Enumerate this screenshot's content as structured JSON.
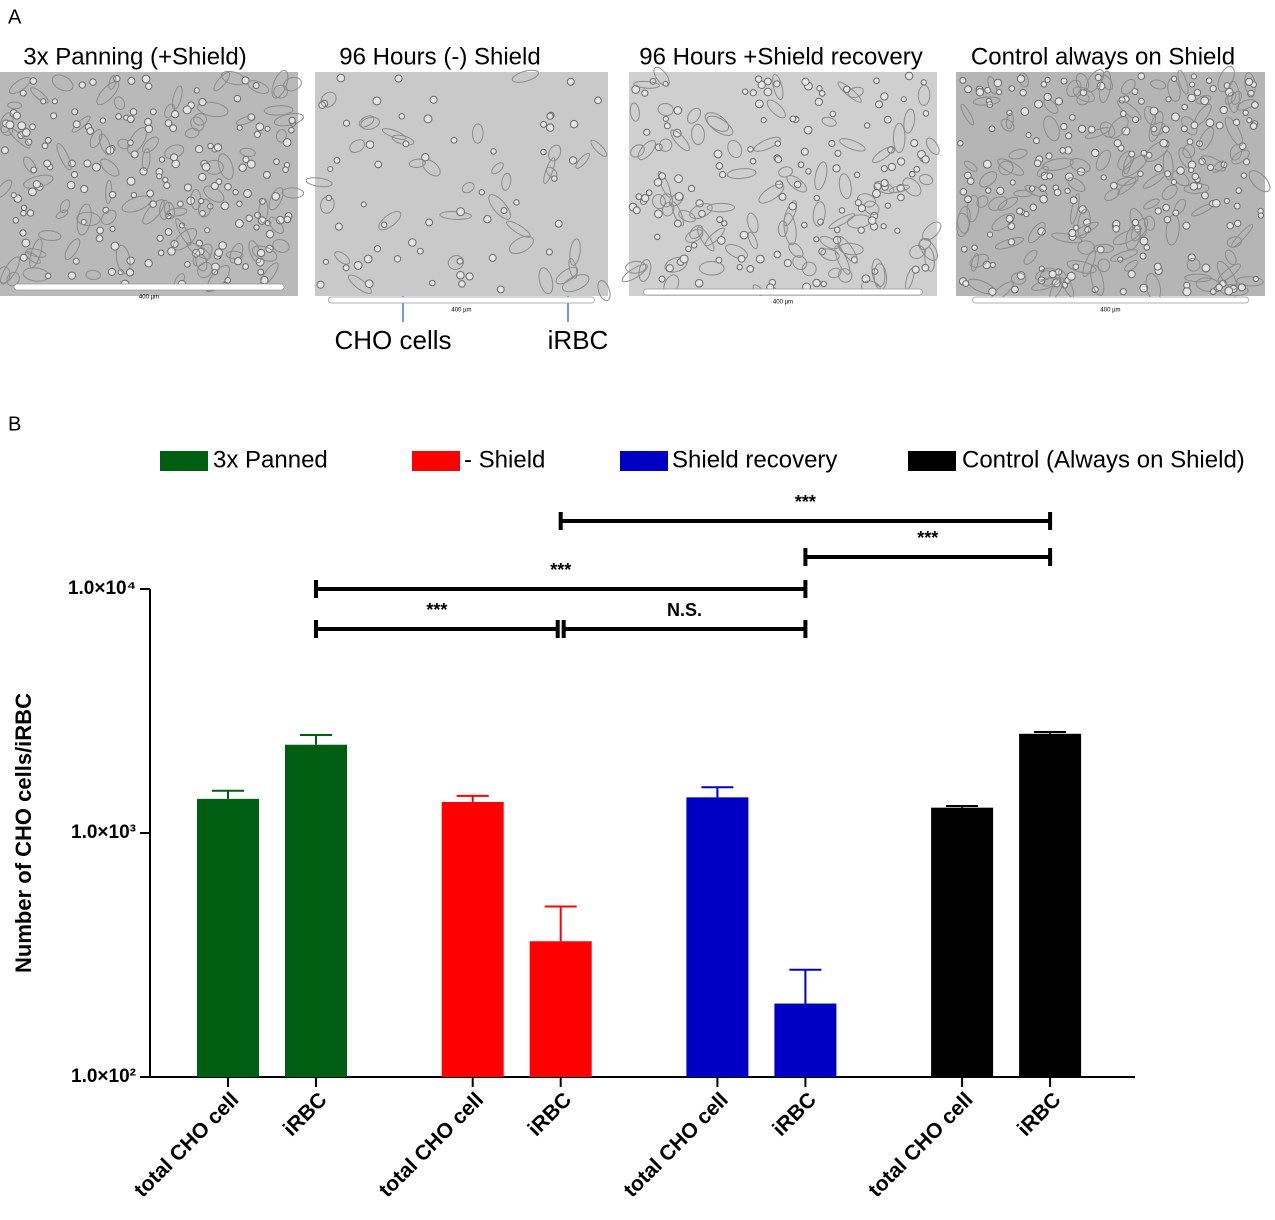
{
  "panel_a": {
    "label": "A",
    "images": [
      {
        "title": "3x Panning (+Shield)",
        "scale": "400 µm"
      },
      {
        "title": "96 Hours (-) Shield",
        "scale": "400 µm"
      },
      {
        "title": "96 Hours +Shield recovery",
        "scale": "400 µm"
      },
      {
        "title": "Control always on Shield",
        "scale": "400 µm"
      }
    ],
    "annotations": [
      "CHO cells",
      "iRBC"
    ]
  },
  "chart_data": {
    "type": "bar",
    "panel_label": "B",
    "ylabel": "Number of CHO cells/iRBC",
    "categories": [
      "total CHO cell",
      "iRBC",
      "total CHO cell",
      "iRBC",
      "total CHO cell",
      "iRBC",
      "total CHO cell",
      "iRBC"
    ],
    "series": [
      {
        "name": "3x Panned",
        "color": "#005e12",
        "values": [
          1380,
          2300,
          null,
          null,
          null,
          null,
          null,
          null
        ],
        "errors": [
          110,
          220,
          null,
          null,
          null,
          null,
          null,
          null
        ]
      },
      {
        "name": "- Shield",
        "color": "#ff0000",
        "values": [
          null,
          null,
          1340,
          360,
          null,
          null,
          null,
          null
        ],
        "errors": [
          null,
          null,
          80,
          140,
          null,
          null,
          null,
          null
        ]
      },
      {
        "name": "Shield recovery",
        "color": "#0000c4",
        "values": [
          null,
          null,
          null,
          null,
          1400,
          200,
          null,
          null
        ],
        "errors": [
          null,
          null,
          null,
          null,
          140,
          75,
          null,
          null
        ]
      },
      {
        "name": "Control (Always on  Shield)",
        "color": "#000000",
        "values": [
          null,
          null,
          null,
          null,
          null,
          null,
          1270,
          2550
        ],
        "errors": [
          null,
          null,
          null,
          null,
          null,
          null,
          20,
          45
        ]
      }
    ],
    "ylim": [
      100,
      10000
    ],
    "log_scale": true,
    "yticks": [
      {
        "value": 100,
        "label": "1.0×10²"
      },
      {
        "value": 1000,
        "label": "1.0×10³"
      },
      {
        "value": 10000,
        "label": "1.0×10⁴"
      }
    ],
    "legend_position": "top",
    "brackets": [
      {
        "label": "***",
        "from": 1,
        "to": 3
      },
      {
        "label": "N.S.",
        "from": 3,
        "to": 5
      },
      {
        "label": "***",
        "from": 1,
        "to": 5
      },
      {
        "label": "***",
        "from": 5,
        "to": 7
      },
      {
        "label": "***",
        "from": 3,
        "to": 7
      }
    ]
  }
}
